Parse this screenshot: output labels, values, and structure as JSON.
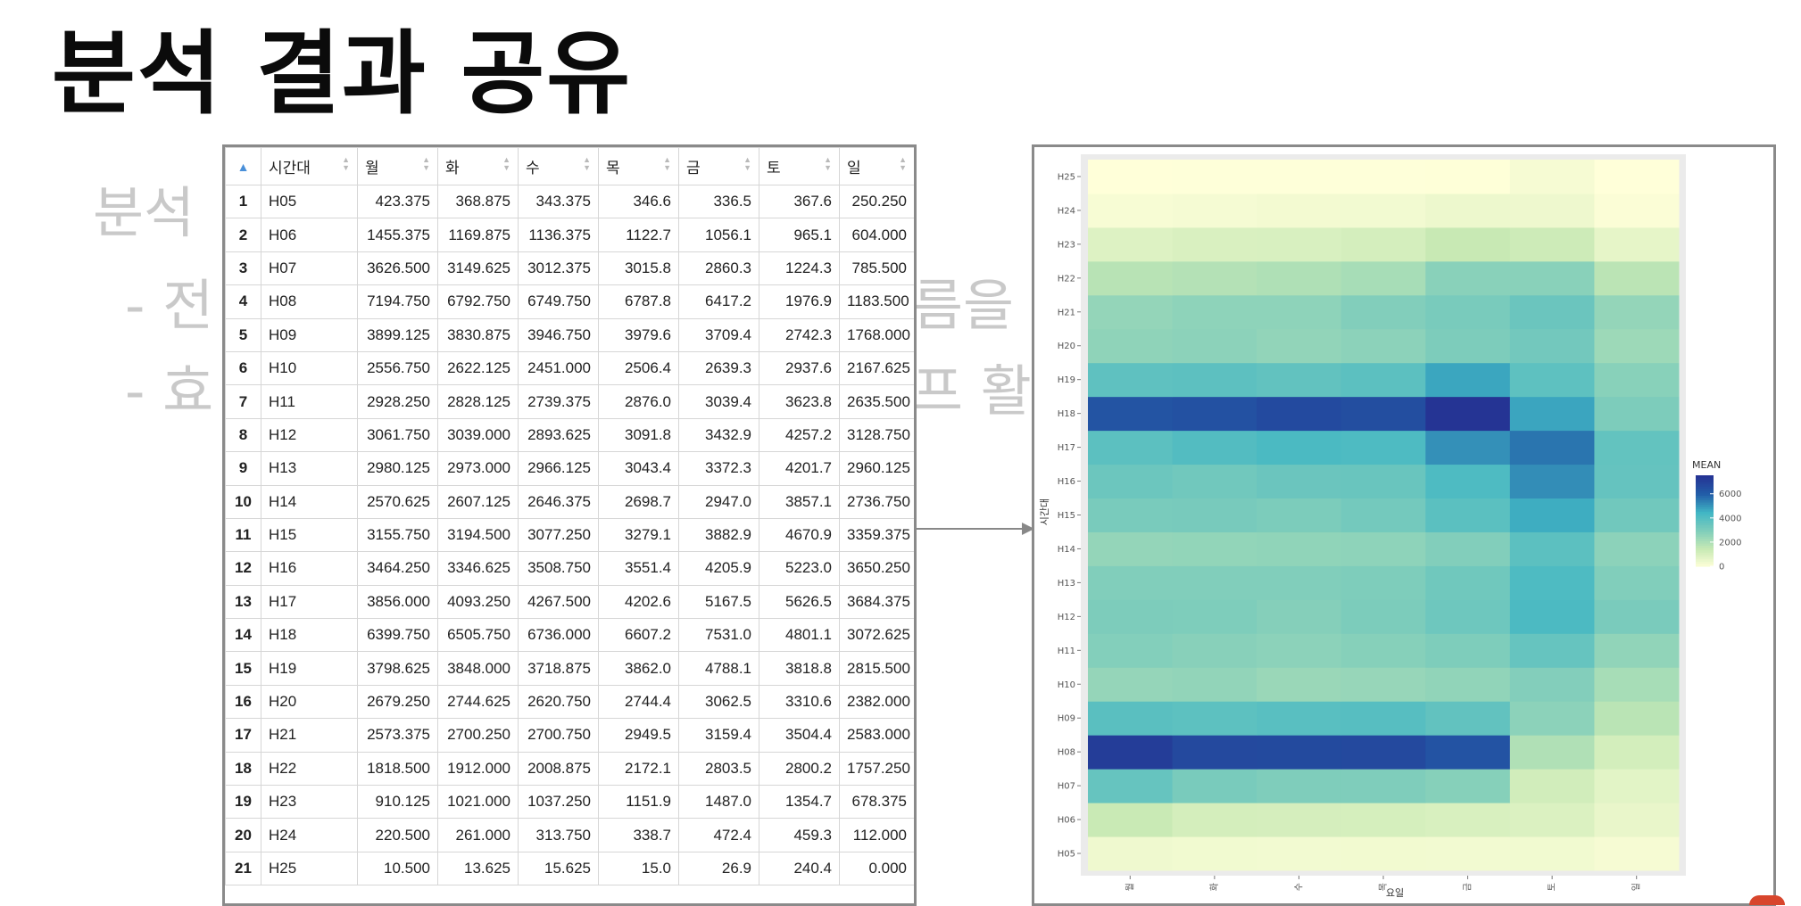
{
  "slide": {
    "title": "분석 결과 공유",
    "background_lines": [
      "분석",
      "- 전",
      "- 효",
      "름을",
      "프 활"
    ]
  },
  "table": {
    "columns": [
      "시간대",
      "월",
      "화",
      "수",
      "목",
      "금",
      "토",
      "일"
    ],
    "rows": [
      [
        "1",
        "H05",
        "423.375",
        "368.875",
        "343.375",
        "346.6",
        "336.5",
        "367.6",
        "250.250"
      ],
      [
        "2",
        "H06",
        "1455.375",
        "1169.875",
        "1136.375",
        "1122.7",
        "1056.1",
        "965.1",
        "604.000"
      ],
      [
        "3",
        "H07",
        "3626.500",
        "3149.625",
        "3012.375",
        "3015.8",
        "2860.3",
        "1224.3",
        "785.500"
      ],
      [
        "4",
        "H08",
        "7194.750",
        "6792.750",
        "6749.750",
        "6787.8",
        "6417.2",
        "1976.9",
        "1183.500"
      ],
      [
        "5",
        "H09",
        "3899.125",
        "3830.875",
        "3946.750",
        "3979.6",
        "3709.4",
        "2742.3",
        "1768.000"
      ],
      [
        "6",
        "H10",
        "2556.750",
        "2622.125",
        "2451.000",
        "2506.4",
        "2639.3",
        "2937.6",
        "2167.625"
      ],
      [
        "7",
        "H11",
        "2928.250",
        "2828.125",
        "2739.375",
        "2876.0",
        "3039.4",
        "3623.8",
        "2635.500"
      ],
      [
        "8",
        "H12",
        "3061.750",
        "3039.000",
        "2893.625",
        "3091.8",
        "3432.9",
        "4257.2",
        "3128.750"
      ],
      [
        "9",
        "H13",
        "2980.125",
        "2973.000",
        "2966.125",
        "3043.4",
        "3372.3",
        "4201.7",
        "2960.125"
      ],
      [
        "10",
        "H14",
        "2570.625",
        "2607.125",
        "2646.375",
        "2698.7",
        "2947.0",
        "3857.1",
        "2736.750"
      ],
      [
        "11",
        "H15",
        "3155.750",
        "3194.500",
        "3077.250",
        "3279.1",
        "3882.9",
        "4670.9",
        "3359.375"
      ],
      [
        "12",
        "H16",
        "3464.250",
        "3346.625",
        "3508.750",
        "3551.4",
        "4205.9",
        "5223.0",
        "3650.250"
      ],
      [
        "13",
        "H17",
        "3856.000",
        "4093.250",
        "4267.500",
        "4202.6",
        "5167.5",
        "5626.5",
        "3684.375"
      ],
      [
        "14",
        "H18",
        "6399.750",
        "6505.750",
        "6736.000",
        "6607.2",
        "7531.0",
        "4801.1",
        "3072.625"
      ],
      [
        "15",
        "H19",
        "3798.625",
        "3848.000",
        "3718.875",
        "3862.0",
        "4788.1",
        "3818.8",
        "2815.500"
      ],
      [
        "16",
        "H20",
        "2679.250",
        "2744.625",
        "2620.750",
        "2744.4",
        "3062.5",
        "3310.6",
        "2382.000"
      ],
      [
        "17",
        "H21",
        "2573.375",
        "2700.250",
        "2700.750",
        "2949.5",
        "3159.4",
        "3504.4",
        "2583.000"
      ],
      [
        "18",
        "H22",
        "1818.500",
        "1912.000",
        "2008.875",
        "2172.1",
        "2803.5",
        "2800.2",
        "1757.250"
      ],
      [
        "19",
        "H23",
        "910.125",
        "1021.000",
        "1037.250",
        "1151.9",
        "1487.0",
        "1354.7",
        "678.375"
      ],
      [
        "20",
        "H24",
        "220.500",
        "261.000",
        "313.750",
        "338.7",
        "472.4",
        "459.3",
        "112.000"
      ],
      [
        "21",
        "H25",
        "10.500",
        "13.625",
        "15.625",
        "15.0",
        "26.9",
        "240.4",
        "0.000"
      ]
    ]
  },
  "chart_data": {
    "type": "heatmap",
    "x_categories": [
      "월",
      "화",
      "수",
      "목",
      "금",
      "토",
      "일"
    ],
    "y_categories": [
      "H05",
      "H06",
      "H07",
      "H08",
      "H09",
      "H10",
      "H11",
      "H12",
      "H13",
      "H14",
      "H15",
      "H16",
      "H17",
      "H18",
      "H19",
      "H20",
      "H21",
      "H22",
      "H23",
      "H24",
      "H25"
    ],
    "values": [
      [
        423.375,
        368.875,
        343.375,
        346.6,
        336.5,
        367.6,
        250.25
      ],
      [
        1455.375,
        1169.875,
        1136.375,
        1122.7,
        1056.1,
        965.1,
        604.0
      ],
      [
        3626.5,
        3149.625,
        3012.375,
        3015.8,
        2860.3,
        1224.3,
        785.5
      ],
      [
        7194.75,
        6792.75,
        6749.75,
        6787.8,
        6417.2,
        1976.9,
        1183.5
      ],
      [
        3899.125,
        3830.875,
        3946.75,
        3979.6,
        3709.4,
        2742.3,
        1768.0
      ],
      [
        2556.75,
        2622.125,
        2451.0,
        2506.4,
        2639.3,
        2937.6,
        2167.625
      ],
      [
        2928.25,
        2828.125,
        2739.375,
        2876.0,
        3039.4,
        3623.8,
        2635.5
      ],
      [
        3061.75,
        3039.0,
        2893.625,
        3091.8,
        3432.9,
        4257.2,
        3128.75
      ],
      [
        2980.125,
        2973.0,
        2966.125,
        3043.4,
        3372.3,
        4201.7,
        2960.125
      ],
      [
        2570.625,
        2607.125,
        2646.375,
        2698.7,
        2947.0,
        3857.1,
        2736.75
      ],
      [
        3155.75,
        3194.5,
        3077.25,
        3279.1,
        3882.9,
        4670.9,
        3359.375
      ],
      [
        3464.25,
        3346.625,
        3508.75,
        3551.4,
        4205.9,
        5223.0,
        3650.25
      ],
      [
        3856.0,
        4093.25,
        4267.5,
        4202.6,
        5167.5,
        5626.5,
        3684.375
      ],
      [
        6399.75,
        6505.75,
        6736.0,
        6607.2,
        7531.0,
        4801.1,
        3072.625
      ],
      [
        3798.625,
        3848.0,
        3718.875,
        3862.0,
        4788.1,
        3818.8,
        2815.5
      ],
      [
        2679.25,
        2744.625,
        2620.75,
        2744.4,
        3062.5,
        3310.6,
        2382.0
      ],
      [
        2573.375,
        2700.25,
        2700.75,
        2949.5,
        3159.4,
        3504.4,
        2583.0
      ],
      [
        1818.5,
        1912.0,
        2008.875,
        2172.1,
        2803.5,
        2800.2,
        1757.25
      ],
      [
        910.125,
        1021.0,
        1037.25,
        1151.9,
        1487.0,
        1354.7,
        678.375
      ],
      [
        220.5,
        261.0,
        313.75,
        338.7,
        472.4,
        459.3,
        112.0
      ],
      [
        10.5,
        13.625,
        15.625,
        15.0,
        26.9,
        240.4,
        0.0
      ]
    ],
    "xlabel": "요일",
    "ylabel": "시간대",
    "legend": {
      "title": "MEAN",
      "ticks": [
        0,
        2000,
        4000,
        6000
      ],
      "placement": "right"
    },
    "color_range": [
      0,
      7531
    ],
    "colors": [
      "#ffffd9",
      "#c7e9b4",
      "#7fcdbb",
      "#41b6c4",
      "#225ea8",
      "#253494"
    ],
    "grid": true
  }
}
